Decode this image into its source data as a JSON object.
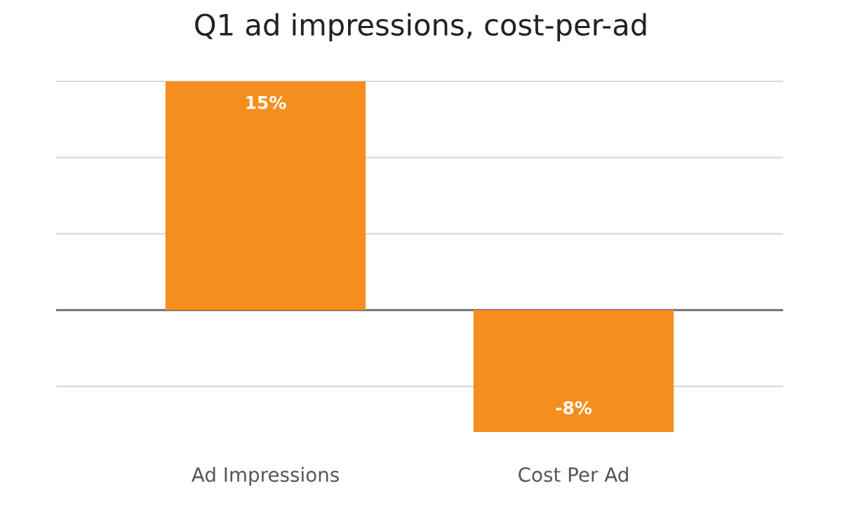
{
  "chart_data": {
    "type": "bar",
    "title": "Q1 ad impressions, cost-per-ad",
    "categories": [
      "Ad Impressions",
      "Cost Per Ad"
    ],
    "series": [
      {
        "color": "#f68d1f",
        "values": [
          15,
          -8
        ],
        "value_labels": [
          "15%",
          "-8%"
        ]
      }
    ],
    "tick_labels": "x",
    "grid": "y",
    "legend": false
  }
}
